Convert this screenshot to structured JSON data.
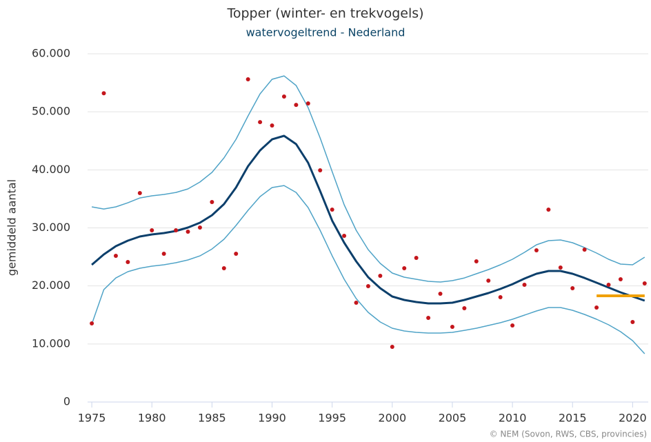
{
  "chart_data": {
    "type": "line",
    "title": "Topper (winter- en trekvogels)",
    "subtitle": "watervogeltrend - Nederland",
    "y_label": "gemiddeld aantal",
    "credit": "© NEM (Sovon, RWS, CBS, provincies)",
    "x": [
      1975,
      1976,
      1977,
      1978,
      1979,
      1980,
      1981,
      1982,
      1983,
      1984,
      1985,
      1986,
      1987,
      1988,
      1989,
      1990,
      1991,
      1992,
      1993,
      1994,
      1995,
      1996,
      1997,
      1998,
      1999,
      2000,
      2001,
      2002,
      2003,
      2004,
      2005,
      2006,
      2007,
      2008,
      2009,
      2010,
      2011,
      2012,
      2013,
      2014,
      2015,
      2016,
      2017,
      2018,
      2019,
      2020,
      2021
    ],
    "xlim": [
      1974.65,
      2021.3
    ],
    "xticks": [
      1975,
      1980,
      1985,
      1990,
      1995,
      2000,
      2005,
      2010,
      2015,
      2020
    ],
    "ylim": [
      0,
      60000
    ],
    "yticks": [
      0,
      {
        "value": 10000,
        "label": "10.000"
      },
      {
        "value": 20000,
        "label": "20.000"
      },
      {
        "value": 30000,
        "label": "30.000"
      },
      {
        "value": 40000,
        "label": "40.000"
      },
      {
        "value": 50000,
        "label": "50.000"
      },
      {
        "value": 60000,
        "label": "60.000"
      }
    ],
    "grid": true,
    "series": [
      {
        "mark": "band",
        "color": "#4fa3c7",
        "values": [
          33620,
          33260,
          33620,
          34330,
          35160,
          35520,
          35760,
          36110,
          36710,
          37900,
          39560,
          42060,
          45260,
          49300,
          53100,
          55600,
          56190,
          54530,
          50730,
          45500,
          39680,
          33980,
          29580,
          26260,
          23880,
          22220,
          21500,
          21150,
          20790,
          20670,
          20910,
          21380,
          22100,
          22810,
          23640,
          24590,
          25780,
          27090,
          27800,
          27920,
          27440,
          26610,
          25660,
          24590,
          23760,
          23640,
          24950
        ]
      },
      {
        "mark": "band",
        "color": "#4fa3c7",
        "values": [
          13420,
          19360,
          21380,
          22450,
          23050,
          23400,
          23640,
          24000,
          24470,
          25180,
          26370,
          28040,
          30410,
          33030,
          35400,
          36950,
          37300,
          36110,
          33500,
          29580,
          25180,
          21150,
          17820,
          15440,
          13780,
          12710,
          12240,
          12000,
          11880,
          11880,
          12000,
          12350,
          12710,
          13190,
          13660,
          14260,
          14970,
          15680,
          16280,
          16280,
          15800,
          15090,
          14260,
          13310,
          12120,
          10570,
          8320
        ]
      },
      {
        "mark": "trend",
        "color": "#0c3f6b",
        "values": [
          23640,
          25420,
          26850,
          27800,
          28510,
          28870,
          29110,
          29460,
          30060,
          30890,
          32190,
          34100,
          36950,
          40630,
          43360,
          45260,
          45860,
          44430,
          41220,
          36350,
          31240,
          27440,
          24240,
          21500,
          19600,
          18180,
          17580,
          17230,
          16990,
          16990,
          17110,
          17580,
          18180,
          18770,
          19480,
          20310,
          21270,
          22100,
          22570,
          22570,
          22100,
          21380,
          20550,
          19720,
          18890,
          18180,
          17460
        ]
      },
      {
        "mark": "dot",
        "color": "#c4161c",
        "values": [
          13540,
          53200,
          25190,
          24120,
          36000,
          29580,
          25540,
          29580,
          29340,
          30060,
          34450,
          23050,
          25540,
          55600,
          48230,
          47640,
          52630,
          51200,
          51440,
          39920,
          33150,
          28630,
          17110,
          19960,
          21740,
          9500,
          23050,
          24830,
          14490,
          18650,
          12950,
          16160,
          24240,
          20910,
          18060,
          13190,
          20200,
          26140,
          33150,
          23170,
          19600,
          26260,
          16280,
          20200,
          21150,
          13780,
          20430
        ]
      },
      {
        "mark": "level",
        "color": "#f0a000",
        "x": [
          2017,
          2021
        ],
        "values": [
          18300,
          18300
        ]
      }
    ]
  }
}
